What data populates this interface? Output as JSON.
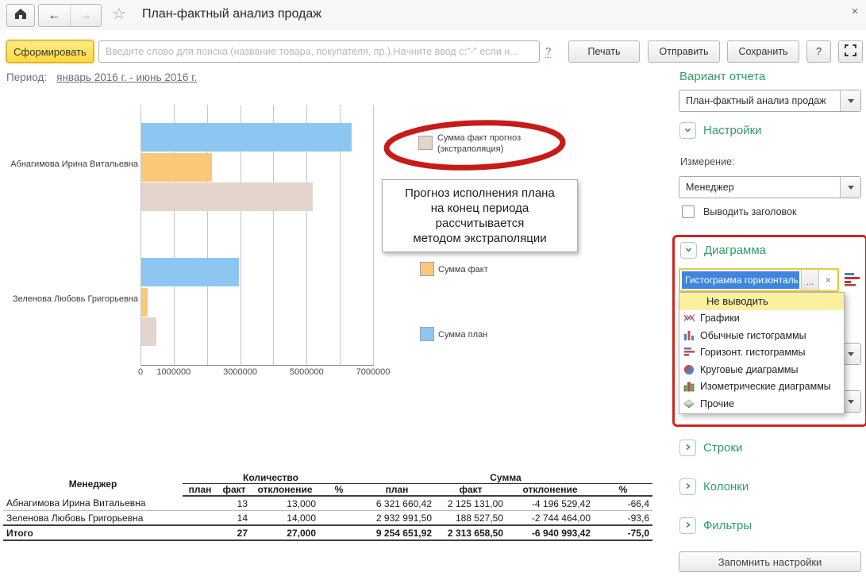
{
  "window": {
    "title": "План-фактный анализ продаж",
    "close": "×"
  },
  "toolbar": {
    "generate": "Сформировать",
    "search_placeholder": "Введите слово для поиска (название товара, покупателя, пр.).Начните ввод с:\"-\" если н...",
    "search_help": "?",
    "print": "Печать",
    "send": "Отправить",
    "save": "Сохранить",
    "help": "?"
  },
  "period": {
    "label": "Период:",
    "value": "январь 2016 г. - июнь 2016 г."
  },
  "chart_data": {
    "type": "bar",
    "orientation": "horizontal",
    "categories": [
      "Абнагимова Ирина Витальевна",
      "Зеленова Любовь Григорьевна"
    ],
    "series": [
      {
        "name": "Сумма план",
        "color": "#8ec6f2",
        "values": [
          6321660.42,
          2932991.5
        ]
      },
      {
        "name": "Сумма факт",
        "color": "#fbc778",
        "values": [
          2125131.0,
          188527.5
        ]
      },
      {
        "name": "Сумма факт прогноз (экстраполяция)",
        "color": "#e3d4cc",
        "values": [
          5170000,
          460000
        ]
      }
    ],
    "xlim": [
      0,
      7000000
    ],
    "x_ticks": [
      0,
      1000000,
      3000000,
      5000000,
      7000000
    ],
    "gridline_step": 1000000,
    "grid": true,
    "legend_position": "right"
  },
  "legend": {
    "forecast": "Сумма факт прогноз\n(экстраполяция)",
    "fact": "Сумма факт",
    "plan": "Сумма план"
  },
  "annotation": "Прогноз исполнения плана\nна конец периода\nрассчитывается\nметодом экстраполяции",
  "sidebar": {
    "variant_header": "Вариант отчета",
    "variant_value": "План-фактный анализ продаж",
    "settings_header": "Настройки",
    "dimension_label": "Измерение:",
    "dimension_value": "Менеджер",
    "show_title_label": "Выводить заголовок",
    "diagram_header": "Диаграмма",
    "chart_type_value": "Гистограмма горизонталь",
    "combo_more": "...",
    "combo_clear": "×",
    "dropdown_options": [
      {
        "label": "Не выводить",
        "icon": null,
        "selected": true
      },
      {
        "label": "Графики",
        "icon": "line-chart-icon"
      },
      {
        "label": "Обычные гистограммы",
        "icon": "bar-chart-icon"
      },
      {
        "label": "Горизонт. гистограммы",
        "icon": "hbar-chart-icon"
      },
      {
        "label": "Круговые диаграммы",
        "icon": "pie-chart-icon"
      },
      {
        "label": "Изометрические диаграммы",
        "icon": "iso-chart-icon"
      },
      {
        "label": "Прочие",
        "icon": "other-chart-icon"
      }
    ],
    "rows_header": "Строки",
    "columns_header": "Колонки",
    "filters_header": "Фильтры",
    "remember_button": "Запомнить настройки"
  },
  "table": {
    "col_manager": "Менеджер",
    "group_quantity": "Количество",
    "group_sum": "Сумма",
    "subheaders": [
      "план",
      "факт",
      "отклонение",
      "%",
      "план",
      "факт",
      "отклонение",
      "%"
    ],
    "rows": [
      {
        "manager": "Абнагимова Ирина Витальевна",
        "cells": [
          "",
          "13",
          "13,000",
          "",
          "6 321 660,42",
          "2 125 131,00",
          "-4 196 529,42",
          "-66,4"
        ]
      },
      {
        "manager": "Зеленова Любовь Григорьевна",
        "cells": [
          "",
          "14",
          "14,000",
          "",
          "2 932 991,50",
          "188 527,50",
          "-2 744 464,00",
          "-93,6"
        ]
      }
    ],
    "total": {
      "manager": "Итого",
      "cells": [
        "",
        "27",
        "27,000",
        "",
        "9 254 651,92",
        "2 313 658,50",
        "-6 940 993,42",
        "-75,0"
      ]
    }
  }
}
